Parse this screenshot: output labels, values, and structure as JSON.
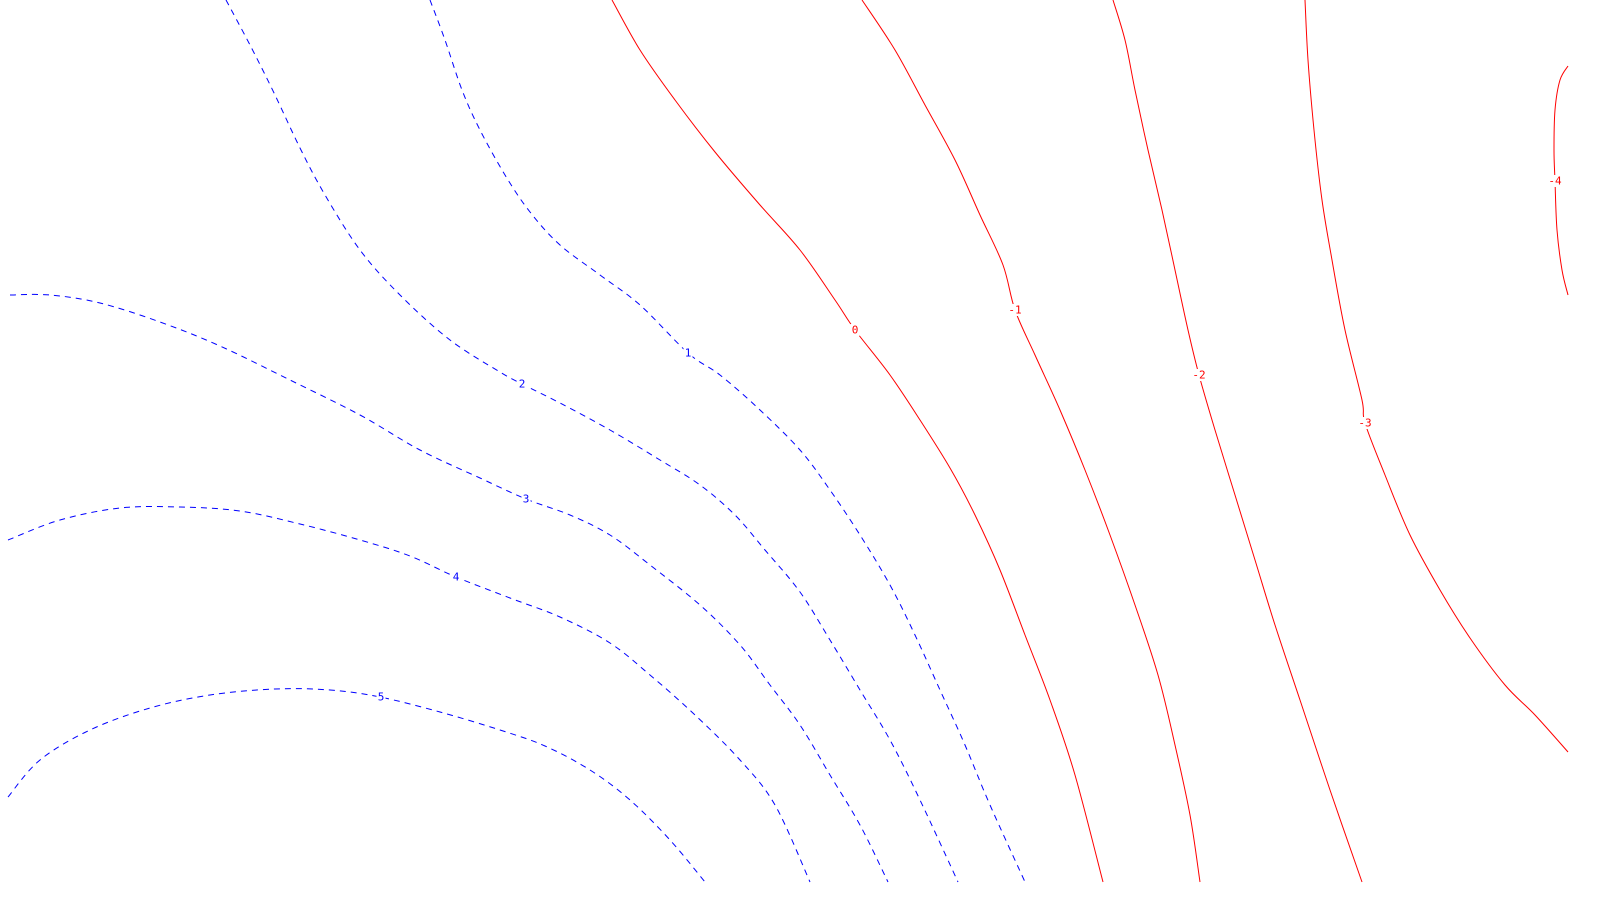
{
  "chart_data": {
    "type": "contour",
    "title": "",
    "xlabel": "",
    "ylabel": "",
    "colors": {
      "positive": "#0000ff",
      "negative": "#ff0000",
      "background": "#ffffff"
    },
    "positive_style": "dashed",
    "negative_style": "solid",
    "levels": [
      {
        "value": 5,
        "label": "5",
        "sign": "positive"
      },
      {
        "value": 4,
        "label": "4",
        "sign": "positive"
      },
      {
        "value": 3,
        "label": "3",
        "sign": "positive"
      },
      {
        "value": 2,
        "label": "2",
        "sign": "positive"
      },
      {
        "value": 1,
        "label": "1",
        "sign": "positive"
      },
      {
        "value": 0,
        "label": "0",
        "sign": "negative"
      },
      {
        "value": -1,
        "label": "-1",
        "sign": "negative"
      },
      {
        "value": -2,
        "label": "-2",
        "sign": "negative"
      },
      {
        "value": -3,
        "label": "-3",
        "sign": "negative"
      },
      {
        "value": -4,
        "label": "-4",
        "sign": "negative"
      }
    ]
  }
}
